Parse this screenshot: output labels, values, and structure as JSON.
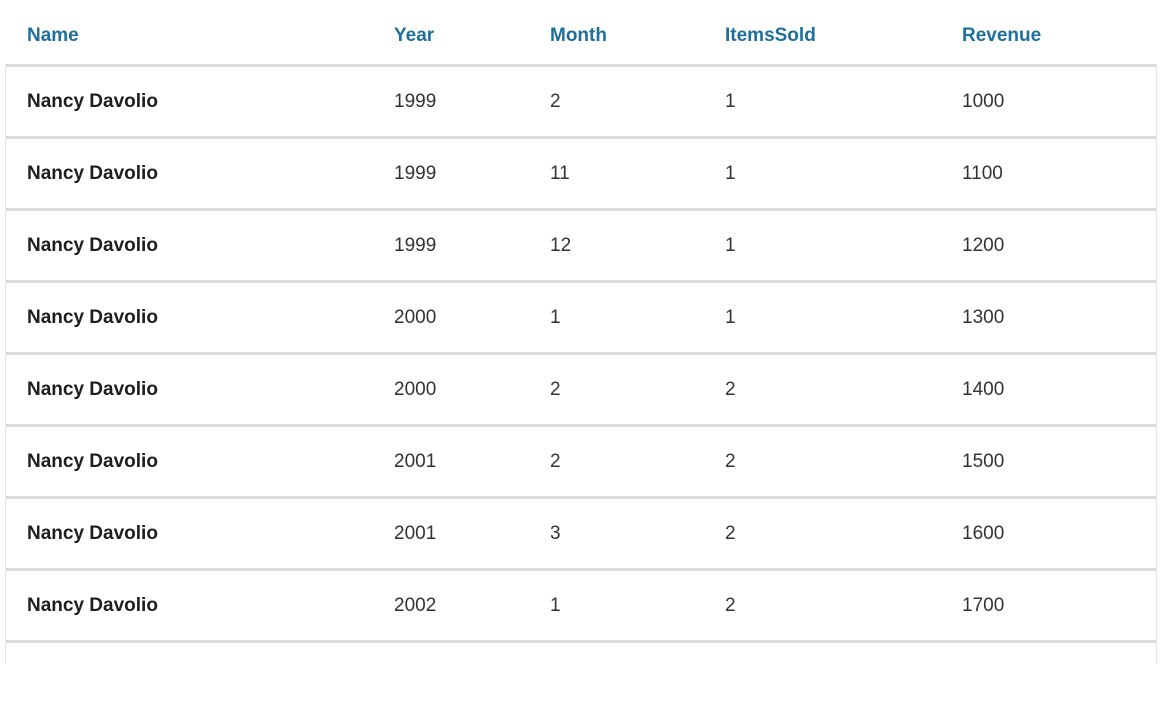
{
  "columns": [
    "Name",
    "Year",
    "Month",
    "ItemsSold",
    "Revenue"
  ],
  "rows": [
    [
      "Nancy Davolio",
      "1999",
      "2",
      "1",
      "1000"
    ],
    [
      "Nancy Davolio",
      "1999",
      "11",
      "1",
      "1100"
    ],
    [
      "Nancy Davolio",
      "1999",
      "12",
      "1",
      "1200"
    ],
    [
      "Nancy Davolio",
      "2000",
      "1",
      "1",
      "1300"
    ],
    [
      "Nancy Davolio",
      "2000",
      "2",
      "2",
      "1400"
    ],
    [
      "Nancy Davolio",
      "2001",
      "2",
      "2",
      "1500"
    ],
    [
      "Nancy Davolio",
      "2001",
      "3",
      "2",
      "1600"
    ],
    [
      "Nancy Davolio",
      "2002",
      "1",
      "2",
      "1700"
    ]
  ],
  "colors": {
    "header_text": "#1f6f9c",
    "row_separator": "#dcdcdc",
    "column_separator": "#e6e6e6"
  }
}
